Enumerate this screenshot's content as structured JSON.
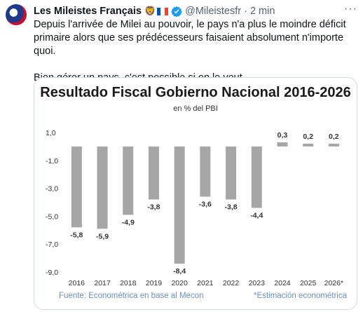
{
  "tweet": {
    "author_name": "Les Mileistes Français",
    "lion_emoji": "🦁",
    "handle": "@Mileistesfr",
    "separator": "·",
    "time": "2 min",
    "more_icon": "more-icon",
    "paragraphs": [
      "Depuis l'arrivée de Milei au pouvoir, le pays n'a plus le moindre déficit primaire alors que ses prédécesseurs faisaient absolument n'importe quoi.",
      "Bien gérer un pays, c'est possible si on le veut."
    ],
    "colors": {
      "verified": "#1d9bf0",
      "flag_blue": "#0055a4",
      "flag_red": "#ef4135"
    }
  },
  "chart_data": {
    "type": "bar",
    "title": "Resultado Fiscal Gobierno Nacional 2016-2026",
    "subtitle": "en % del PBI",
    "categories": [
      "2016",
      "2017",
      "2018",
      "2019",
      "2020",
      "2021",
      "2022",
      "2023",
      "2024",
      "2025",
      "2026*"
    ],
    "values": [
      -5.8,
      -5.9,
      -4.9,
      -3.8,
      -8.4,
      -3.6,
      -3.8,
      -4.4,
      0.3,
      0.2,
      0.2
    ],
    "value_labels": [
      "-5,8",
      "-5,9",
      "-4,9",
      "-3,8",
      "-8,4",
      "-3,6",
      "-3,8",
      "-4,4",
      "0,3",
      "0,2",
      "0,2"
    ],
    "yticks": [
      1.0,
      -1.0,
      -3.0,
      -5.0,
      -7.0,
      -9.0
    ],
    "ytick_labels": [
      "1,0",
      "-1,0",
      "-3,0",
      "-5,0",
      "-7,0",
      "-9,0"
    ],
    "ylim": [
      -9.0,
      1.0
    ],
    "grid": false,
    "bar_color": "#a6a6a6",
    "source": "Fuente: Econométrica en base al Mecon",
    "note": "*Estimación econométrica"
  }
}
